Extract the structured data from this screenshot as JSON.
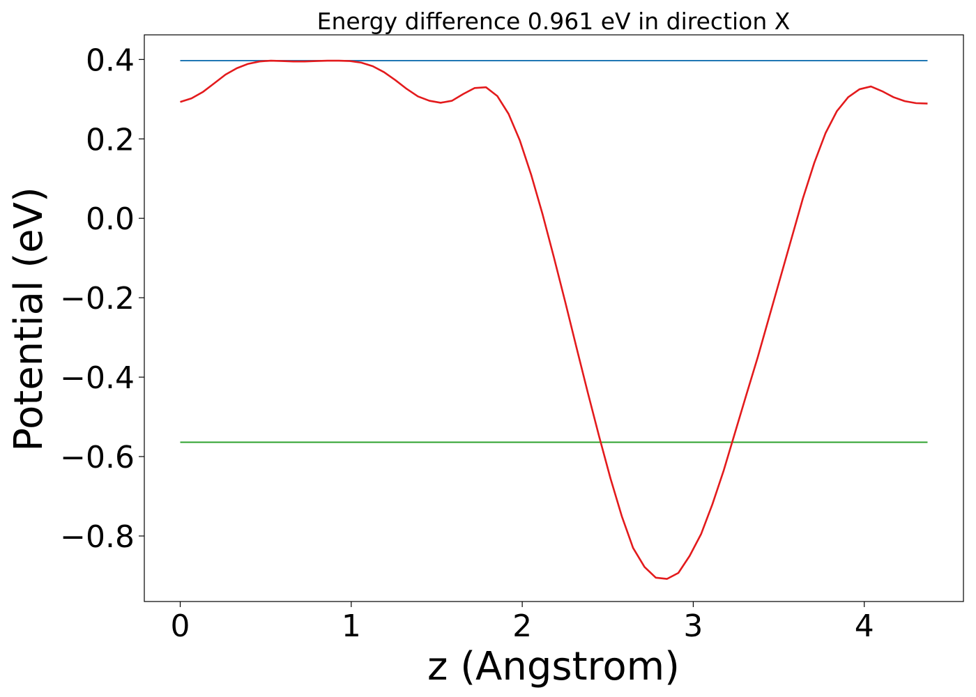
{
  "chart_data": {
    "type": "line",
    "title": "Energy difference 0.961 eV in direction X",
    "xlabel": "z (Angstrom)",
    "ylabel": "Potential (eV)",
    "xlim": [
      -0.21,
      4.58
    ],
    "ylim": [
      -0.965,
      0.462
    ],
    "x_ticks": [
      {
        "value": 0,
        "label": "0"
      },
      {
        "value": 1,
        "label": "1"
      },
      {
        "value": 2,
        "label": "2"
      },
      {
        "value": 3,
        "label": "3"
      },
      {
        "value": 4,
        "label": "4"
      }
    ],
    "y_ticks": [
      {
        "value": 0.4,
        "label": "0.4"
      },
      {
        "value": 0.2,
        "label": "0.2"
      },
      {
        "value": 0.0,
        "label": "0.0"
      },
      {
        "value": -0.2,
        "label": "−0.2"
      },
      {
        "value": -0.4,
        "label": "−0.4"
      },
      {
        "value": -0.6,
        "label": "−0.6"
      },
      {
        "value": -0.8,
        "label": "−0.8"
      }
    ],
    "grid": false,
    "series": [
      {
        "color": "#1f77b4",
        "x": [
          0,
          4.37
        ],
        "y": [
          0.397,
          0.397
        ]
      },
      {
        "color": "#2ca02c",
        "x": [
          0,
          4.37
        ],
        "y": [
          -0.564,
          -0.564
        ]
      },
      {
        "color": "#e31a1c",
        "x": [
          0.0,
          0.066,
          0.132,
          0.199,
          0.265,
          0.331,
          0.397,
          0.464,
          0.53,
          0.596,
          0.662,
          0.728,
          0.795,
          0.861,
          0.927,
          0.993,
          1.059,
          1.126,
          1.192,
          1.258,
          1.324,
          1.39,
          1.457,
          1.523,
          1.589,
          1.655,
          1.721,
          1.788,
          1.854,
          1.92,
          1.986,
          2.052,
          2.119,
          2.185,
          2.251,
          2.317,
          2.384,
          2.45,
          2.516,
          2.582,
          2.648,
          2.715,
          2.781,
          2.847,
          2.913,
          2.979,
          3.046,
          3.112,
          3.178,
          3.244,
          3.31,
          3.377,
          3.443,
          3.509,
          3.575,
          3.641,
          3.708,
          3.774,
          3.84,
          3.906,
          3.972,
          4.039,
          4.105,
          4.171,
          4.237,
          4.303,
          4.37
        ],
        "y": [
          0.293,
          0.302,
          0.318,
          0.34,
          0.362,
          0.378,
          0.389,
          0.395,
          0.397,
          0.396,
          0.395,
          0.395,
          0.396,
          0.397,
          0.397,
          0.396,
          0.392,
          0.383,
          0.368,
          0.348,
          0.326,
          0.307,
          0.296,
          0.291,
          0.296,
          0.313,
          0.328,
          0.33,
          0.308,
          0.263,
          0.196,
          0.11,
          0.01,
          -0.098,
          -0.21,
          -0.325,
          -0.44,
          -0.55,
          -0.655,
          -0.75,
          -0.83,
          -0.878,
          -0.905,
          -0.908,
          -0.893,
          -0.85,
          -0.795,
          -0.72,
          -0.635,
          -0.54,
          -0.445,
          -0.35,
          -0.25,
          -0.15,
          -0.05,
          0.05,
          0.14,
          0.215,
          0.27,
          0.305,
          0.325,
          0.332,
          0.32,
          0.305,
          0.295,
          0.29,
          0.289
        ]
      }
    ]
  }
}
